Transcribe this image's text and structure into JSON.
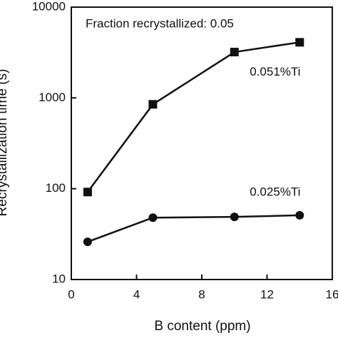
{
  "chart_data": {
    "type": "line",
    "annotation": "Fraction recrystallized: 0.05",
    "xlabel": "B content (ppm)",
    "ylabel": "Recrystallization time (s)",
    "xlim": [
      0,
      16
    ],
    "xticks": [
      0,
      4,
      8,
      12,
      16
    ],
    "ylim": [
      10,
      10000
    ],
    "yticks": [
      10,
      100,
      1000,
      10000
    ],
    "yscale": "log",
    "series": [
      {
        "name": "0.051%Ti",
        "color": "#111111",
        "marker": "square",
        "x": [
          1,
          5,
          10,
          14
        ],
        "values": [
          92,
          850,
          3200,
          4100
        ]
      },
      {
        "name": "0.025%Ti",
        "color": "#111111",
        "marker": "circle",
        "x": [
          1,
          5,
          10,
          14
        ],
        "values": [
          26,
          48,
          49,
          51
        ]
      }
    ]
  }
}
